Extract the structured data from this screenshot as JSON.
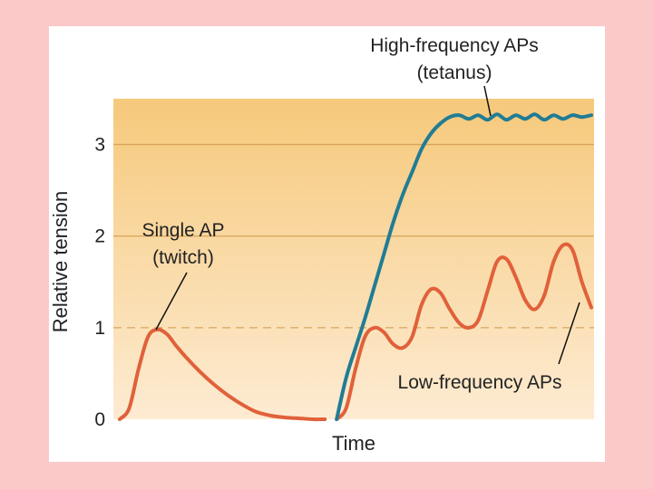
{
  "chart_data": {
    "type": "line",
    "title": "",
    "xlabel": "Time",
    "ylabel": "Relative tension",
    "ylim": [
      0,
      3.5
    ],
    "xlim": [
      0,
      100
    ],
    "yticks": [
      {
        "value": 0,
        "label": "0"
      },
      {
        "value": 1,
        "label": "1"
      },
      {
        "value": 2,
        "label": "2"
      },
      {
        "value": 3,
        "label": "3"
      }
    ],
    "gridlines": [
      2,
      3
    ],
    "reference_line": {
      "value": 1,
      "style": "dashed"
    },
    "colors": {
      "twitch": "#e0613a",
      "low": "#e0613a",
      "tetanus": "#217c94",
      "grid": "#d9a45a"
    },
    "series": [
      {
        "name": "Single AP (twitch)",
        "color": "#e0613a",
        "x": [
          0,
          2,
          4,
          6,
          8,
          10,
          12,
          14,
          17,
          20,
          23,
          26,
          29,
          32,
          35,
          38,
          41,
          43.5
        ],
        "y": [
          0,
          0.12,
          0.55,
          0.9,
          0.98,
          0.93,
          0.8,
          0.68,
          0.52,
          0.38,
          0.26,
          0.16,
          0.08,
          0.04,
          0.02,
          0.01,
          0.0,
          0.0
        ]
      },
      {
        "name": "Low-frequency APs",
        "color": "#e0613a",
        "x": [
          46,
          48,
          50,
          52,
          54,
          56,
          58,
          60,
          62,
          64,
          66,
          68,
          70,
          72,
          74,
          76,
          78,
          80,
          82,
          84,
          86,
          88,
          90,
          92,
          94,
          96,
          98,
          100
        ],
        "y": [
          0.0,
          0.12,
          0.55,
          0.9,
          1.0,
          0.95,
          0.82,
          0.78,
          0.9,
          1.25,
          1.42,
          1.38,
          1.2,
          1.05,
          1.0,
          1.08,
          1.4,
          1.72,
          1.75,
          1.55,
          1.3,
          1.2,
          1.35,
          1.72,
          1.9,
          1.85,
          1.5,
          1.22
        ]
      },
      {
        "name": "High-frequency APs (tetanus)",
        "color": "#217c94",
        "x": [
          46,
          48,
          50,
          52,
          54,
          56,
          58,
          60,
          62,
          64,
          66,
          68,
          70,
          72,
          74,
          76,
          78,
          80,
          82,
          84,
          86,
          88,
          90,
          92,
          94,
          96,
          98,
          100
        ],
        "y": [
          0.0,
          0.45,
          0.78,
          1.1,
          1.45,
          1.8,
          2.15,
          2.45,
          2.7,
          2.95,
          3.12,
          3.23,
          3.3,
          3.32,
          3.28,
          3.32,
          3.27,
          3.33,
          3.27,
          3.32,
          3.28,
          3.33,
          3.27,
          3.32,
          3.28,
          3.32,
          3.3,
          3.32
        ]
      }
    ],
    "annotations": [
      {
        "id": "tetanus",
        "lines": [
          "High-frequency APs",
          "(tetanus)"
        ]
      },
      {
        "id": "twitch",
        "lines": [
          "Single AP",
          "(twitch)"
        ]
      },
      {
        "id": "low",
        "lines": [
          "Low-frequency APs"
        ]
      }
    ]
  }
}
